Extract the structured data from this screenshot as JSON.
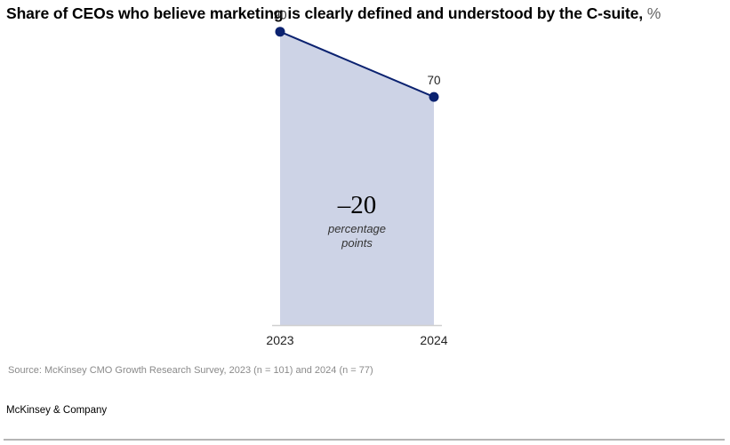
{
  "header": {
    "title": "Share of CEOs who believe marketing is clearly defined and understood by the C-suite,",
    "unit": "%"
  },
  "chart_data": {
    "type": "area",
    "title": "Share of CEOs who believe marketing is clearly defined and understood by the C-suite, %",
    "xlabel": "",
    "ylabel": "",
    "categories": [
      "2023",
      "2024"
    ],
    "series": [
      {
        "name": "Share of CEOs",
        "values": [
          90,
          70
        ]
      }
    ],
    "data_labels": [
      "90",
      "70"
    ],
    "ylim": [
      0,
      100
    ],
    "grid": false,
    "legend": "none",
    "annotation": {
      "value": "–20",
      "line1": "percentage",
      "line2": "points"
    },
    "colors": {
      "line": "#0b2270",
      "marker": "#0b2270",
      "fill": "#cdd3e6",
      "baseline": "#d0d0d0"
    }
  },
  "footer": {
    "source": "Source: McKinsey CMO Growth Research Survey, 2023 (n = 101) and 2024 (n = 77)",
    "brand": "McKinsey & Company"
  }
}
